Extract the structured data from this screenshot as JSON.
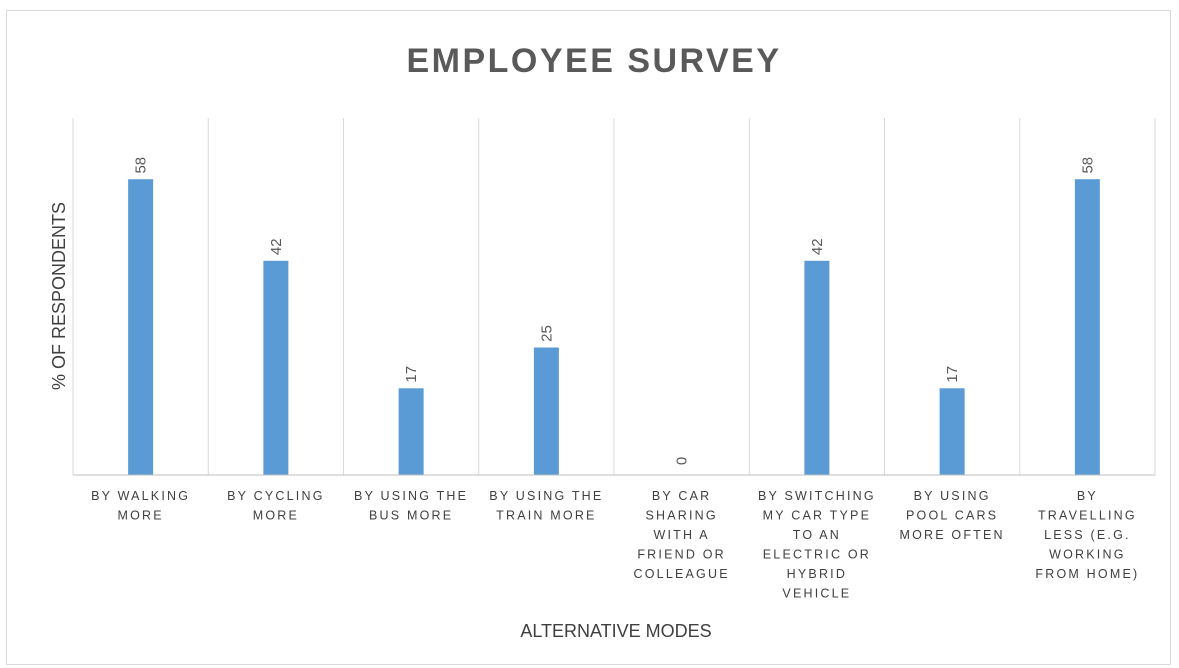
{
  "chart_data": {
    "type": "bar",
    "title": "EMPLOYEE SURVEY",
    "xlabel": "ALTERNATIVE MODES",
    "ylabel": "% OF RESPONDENTS",
    "categories": [
      "BY WALKING MORE",
      "BY CYCLING MORE",
      "BY USING THE BUS MORE",
      "BY USING THE TRAIN MORE",
      "BY CAR SHARING WITH A FRIEND OR COLLEAGUE",
      "BY SWITCHING MY CAR TYPE TO AN ELECTRIC OR HYBRID VEHICLE",
      "BY USING POOL CARS MORE OFTEN",
      "BY TRAVELLING LESS (E.G. WORKING FROM HOME)"
    ],
    "category_lines": [
      [
        "BY WALKING",
        "MORE"
      ],
      [
        "BY CYCLING",
        "MORE"
      ],
      [
        "BY USING THE",
        "BUS MORE"
      ],
      [
        "BY USING THE",
        "TRAIN MORE"
      ],
      [
        "BY CAR",
        "SHARING",
        "WITH A",
        "FRIEND OR",
        "COLLEAGUE"
      ],
      [
        "BY SWITCHING",
        "MY CAR TYPE",
        "TO AN",
        "ELECTRIC OR",
        "HYBRID",
        "VEHICLE"
      ],
      [
        "BY USING",
        "POOL CARS",
        "MORE OFTEN"
      ],
      [
        "BY",
        "TRAVELLING",
        "LESS (E.G.",
        "WORKING",
        "FROM HOME)"
      ]
    ],
    "values": [
      58,
      42,
      17,
      25,
      0,
      42,
      17,
      58
    ],
    "data_labels": [
      "58",
      "42",
      "17",
      "25",
      "0",
      "42",
      "17",
      "58"
    ],
    "ylim": [
      0,
      70
    ],
    "grid": "vertical separators",
    "legend": "none",
    "colors": {
      "bar": "#5b9bd5",
      "gridline": "#d9d9d9",
      "axis": "#bfbfbf",
      "title": "#595959",
      "text": "#404040"
    }
  }
}
